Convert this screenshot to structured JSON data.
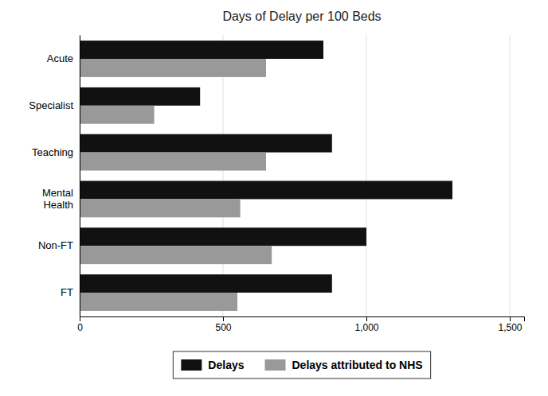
{
  "chart_data": {
    "type": "bar",
    "orientation": "horizontal",
    "title": "Days of Delay per 100 Beds",
    "categories": [
      "Acute",
      "Specialist",
      "Teaching",
      "Mental\nHealth",
      "Non-FT",
      "FT"
    ],
    "series": [
      {
        "name": "Delays",
        "color": "#111111",
        "values": [
          850,
          420,
          880,
          1300,
          1000,
          880
        ]
      },
      {
        "name": "Delays attributed to NHS",
        "color": "#999999",
        "values": [
          650,
          260,
          650,
          560,
          670,
          550
        ]
      }
    ],
    "xlim": [
      0,
      1550
    ],
    "xticks": [
      0,
      500,
      {
        "value": 1000,
        "label": "1,000"
      },
      {
        "value": 1500,
        "label": "1,500"
      }
    ],
    "grid": true,
    "legend": "bottom"
  }
}
